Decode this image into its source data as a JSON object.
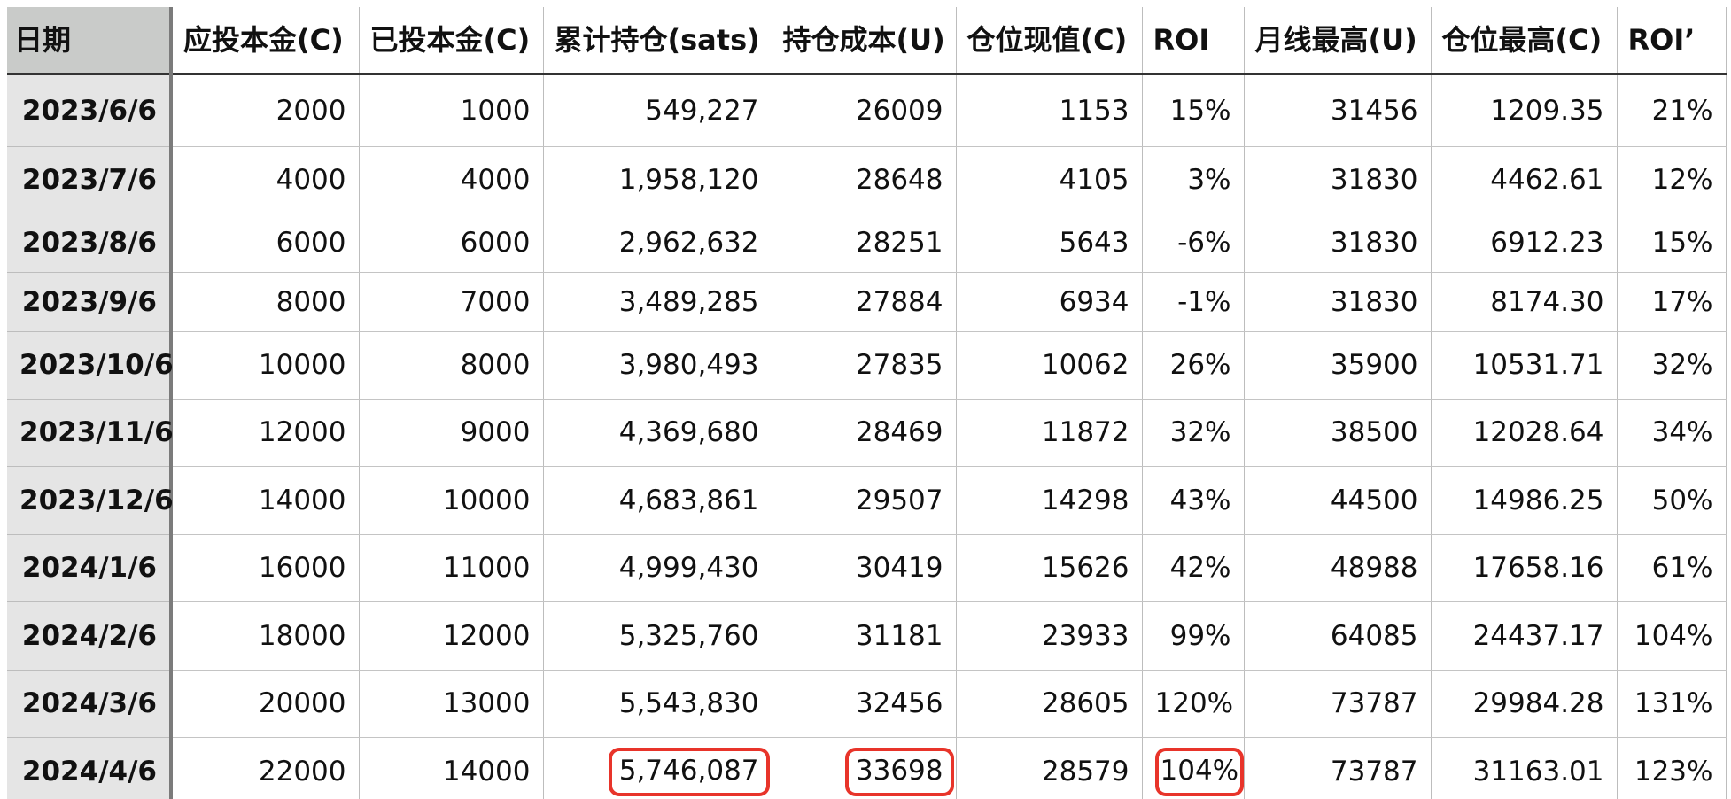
{
  "table": {
    "headers": [
      "日期",
      "应投本金(C)",
      "已投本金(C)",
      "累计持仓(sats)",
      "持仓成本(U)",
      "仓位现值(C)",
      "ROI",
      "月线最高(U)",
      "仓位最高(C)",
      "ROI’"
    ],
    "rows": [
      [
        "2023/6/6",
        "2000",
        "1000",
        "549,227",
        "26009",
        "1153",
        "15%",
        "31456",
        "1209.35",
        "21%"
      ],
      [
        "2023/7/6",
        "4000",
        "4000",
        "1,958,120",
        "28648",
        "4105",
        "3%",
        "31830",
        "4462.61",
        "12%"
      ],
      [
        "2023/8/6",
        "6000",
        "6000",
        "2,962,632",
        "28251",
        "5643",
        "-6%",
        "31830",
        "6912.23",
        "15%"
      ],
      [
        "2023/9/6",
        "8000",
        "7000",
        "3,489,285",
        "27884",
        "6934",
        "-1%",
        "31830",
        "8174.30",
        "17%"
      ],
      [
        "2023/10/6",
        "10000",
        "8000",
        "3,980,493",
        "27835",
        "10062",
        "26%",
        "35900",
        "10531.71",
        "32%"
      ],
      [
        "2023/11/6",
        "12000",
        "9000",
        "4,369,680",
        "28469",
        "11872",
        "32%",
        "38500",
        "12028.64",
        "34%"
      ],
      [
        "2023/12/6",
        "14000",
        "10000",
        "4,683,861",
        "29507",
        "14298",
        "43%",
        "44500",
        "14986.25",
        "50%"
      ],
      [
        "2024/1/6",
        "16000",
        "11000",
        "4,999,430",
        "30419",
        "15626",
        "42%",
        "48988",
        "17658.16",
        "61%"
      ],
      [
        "2024/2/6",
        "18000",
        "12000",
        "5,325,760",
        "31181",
        "23933",
        "99%",
        "64085",
        "24437.17",
        "104%"
      ],
      [
        "2024/3/6",
        "20000",
        "13000",
        "5,543,830",
        "32456",
        "28605",
        "120%",
        "73787",
        "29984.28",
        "131%"
      ],
      [
        "2024/4/6",
        "22000",
        "14000",
        "5,746,087",
        "33698",
        "28579",
        "104%",
        "73787",
        "31163.01",
        "123%"
      ]
    ]
  },
  "highlight_color": "#e8342a",
  "date_column_bg": "#e5e5e5",
  "header_date_bg": "#c9cbc9"
}
